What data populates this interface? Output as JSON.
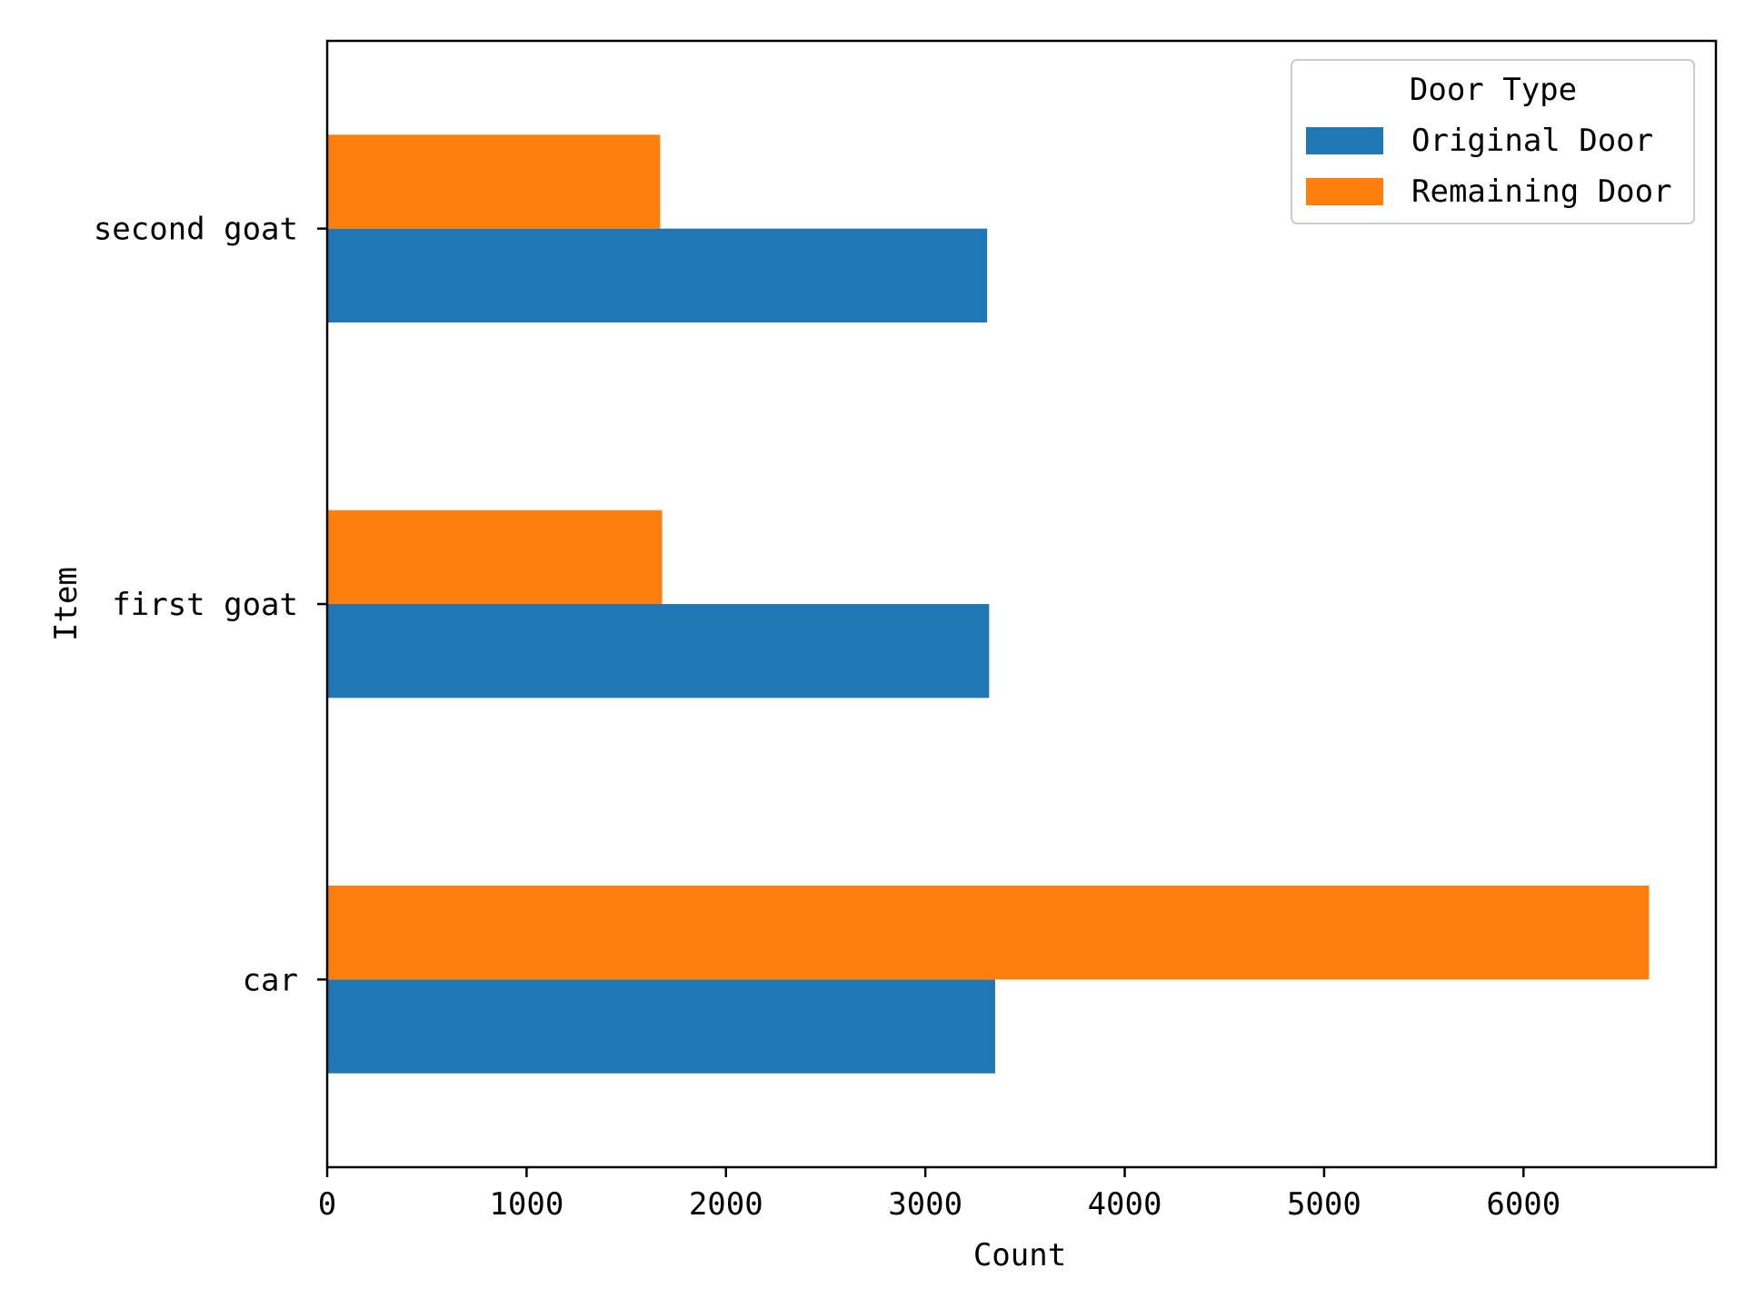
{
  "chart_data": {
    "type": "bar",
    "orientation": "horizontal",
    "categories": [
      "car",
      "first goat",
      "second goat"
    ],
    "series": [
      {
        "name": "Original Door",
        "values": [
          3350,
          3320,
          3310
        ],
        "color": "#1f77b4"
      },
      {
        "name": "Remaining Door",
        "values": [
          6630,
          1680,
          1670
        ],
        "color": "#ff7f0e"
      }
    ],
    "xlabel": "Count",
    "ylabel": "Item",
    "xlim": [
      0,
      6965
    ],
    "xticks": [
      0,
      1000,
      2000,
      3000,
      4000,
      5000,
      6000
    ],
    "grid": false,
    "legend": {
      "title": "Door Type",
      "position": "top-right"
    }
  }
}
